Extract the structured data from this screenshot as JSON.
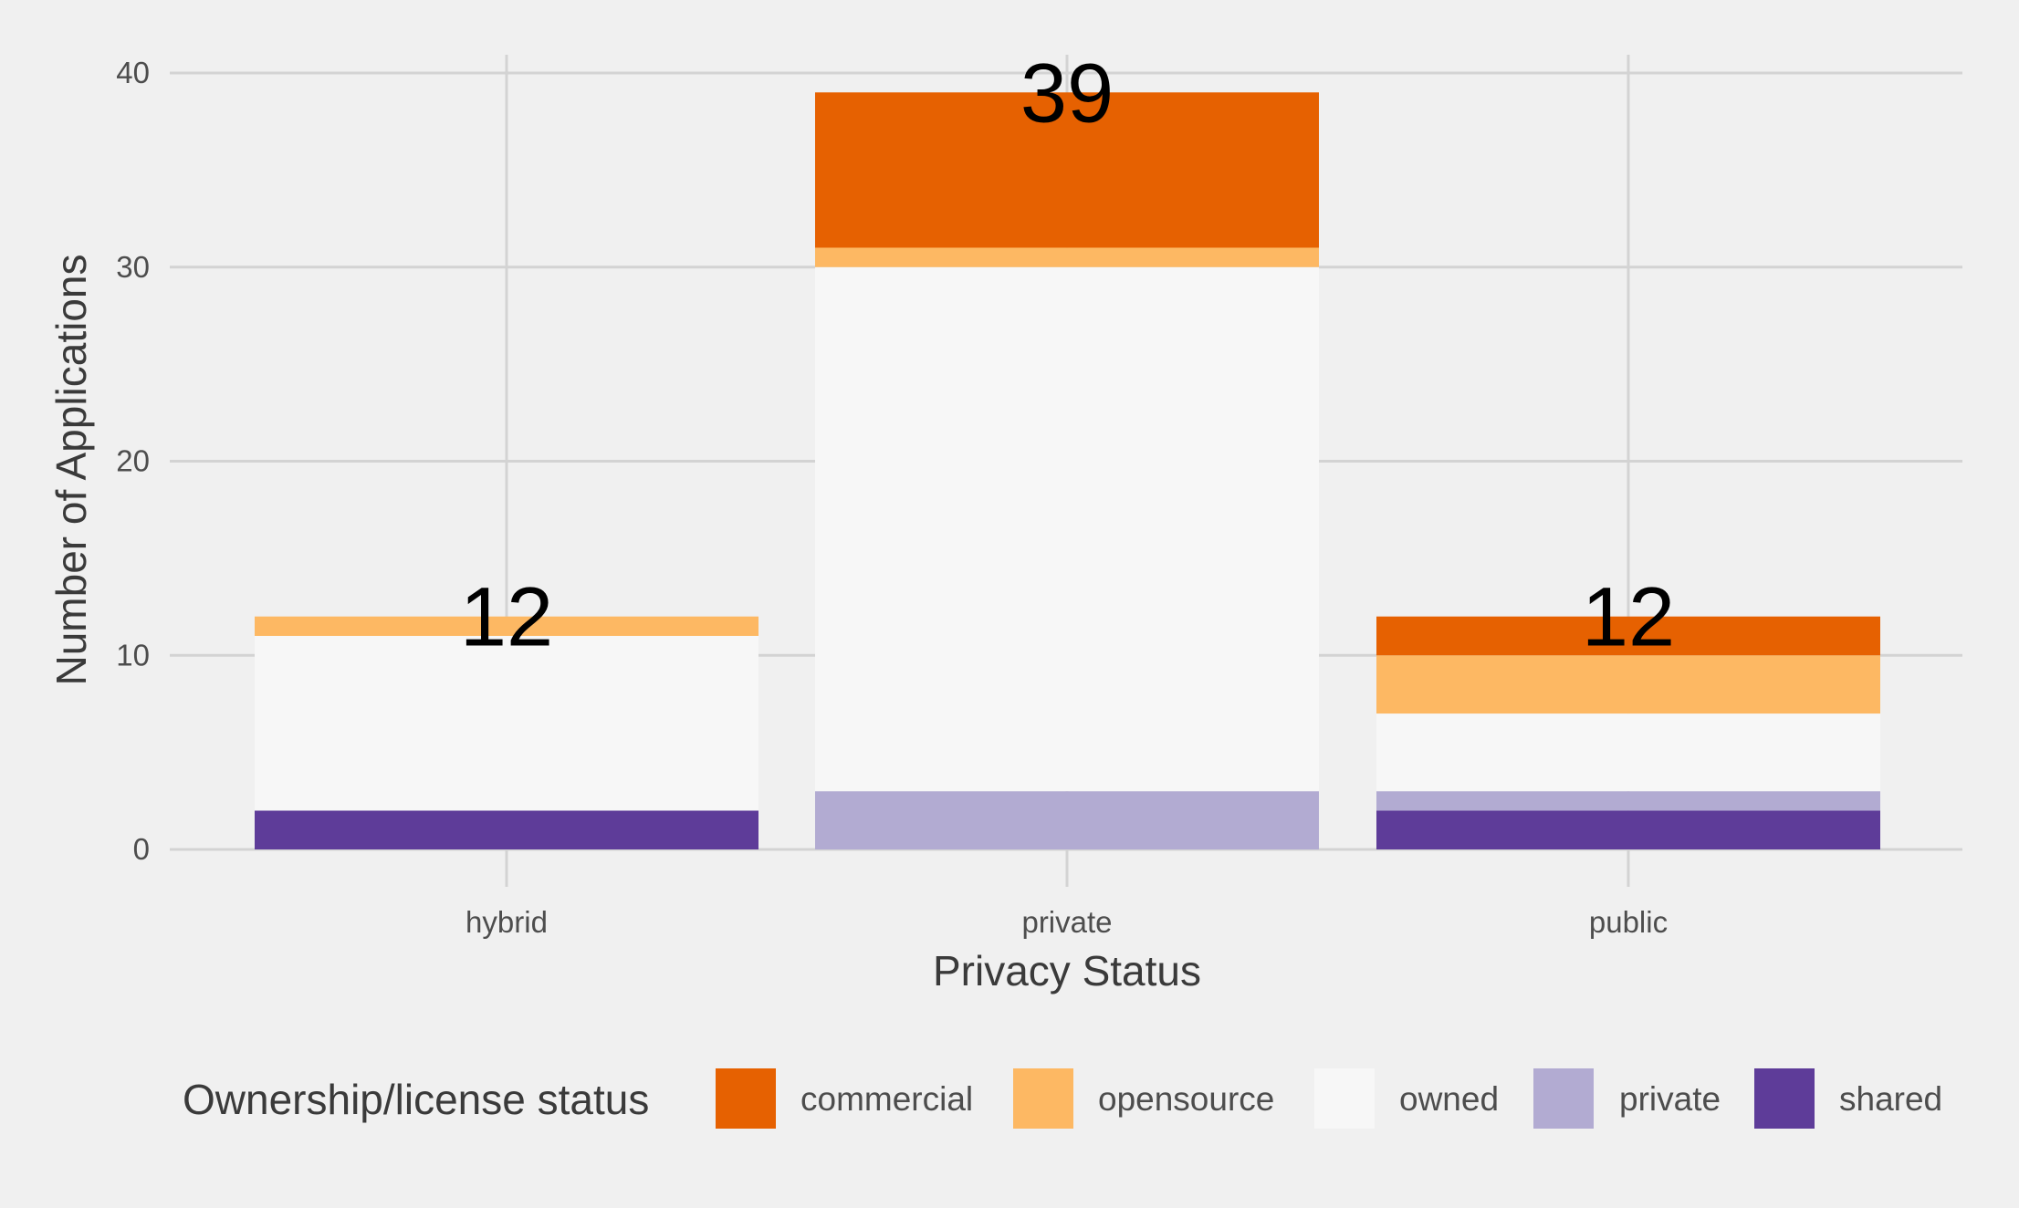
{
  "chart_data": {
    "type": "bar",
    "stacked": true,
    "categories": [
      "hybrid",
      "private",
      "public"
    ],
    "series": [
      {
        "name": "shared",
        "color": "#5e3c99",
        "values": [
          2,
          0,
          2
        ]
      },
      {
        "name": "private",
        "color": "#b2abd2",
        "values": [
          0,
          3,
          1
        ]
      },
      {
        "name": "owned",
        "color": "#f7f7f7",
        "values": [
          9,
          27,
          4
        ]
      },
      {
        "name": "opensource",
        "color": "#fdb863",
        "values": [
          1,
          1,
          3
        ]
      },
      {
        "name": "commercial",
        "color": "#e66101",
        "values": [
          0,
          8,
          2
        ]
      }
    ],
    "totals": [
      12,
      39,
      12
    ],
    "total_labels": [
      "12",
      "39",
      "12"
    ],
    "xlabel": "Privacy Status",
    "ylabel": "Number of Applications",
    "ylim": [
      0,
      40
    ],
    "yticks": [
      0,
      10,
      20,
      30,
      40
    ],
    "ytick_labels": [
      "0",
      "10",
      "20",
      "30",
      "40"
    ],
    "grid": true,
    "legend": {
      "title": "Ownership/license status",
      "position": "bottom",
      "entries": [
        {
          "label": "commercial",
          "color": "#e66101"
        },
        {
          "label": "opensource",
          "color": "#fdb863"
        },
        {
          "label": "owned",
          "color": "#f7f7f7"
        },
        {
          "label": "private",
          "color": "#b2abd2"
        },
        {
          "label": "shared",
          "color": "#5e3c99"
        }
      ]
    }
  }
}
